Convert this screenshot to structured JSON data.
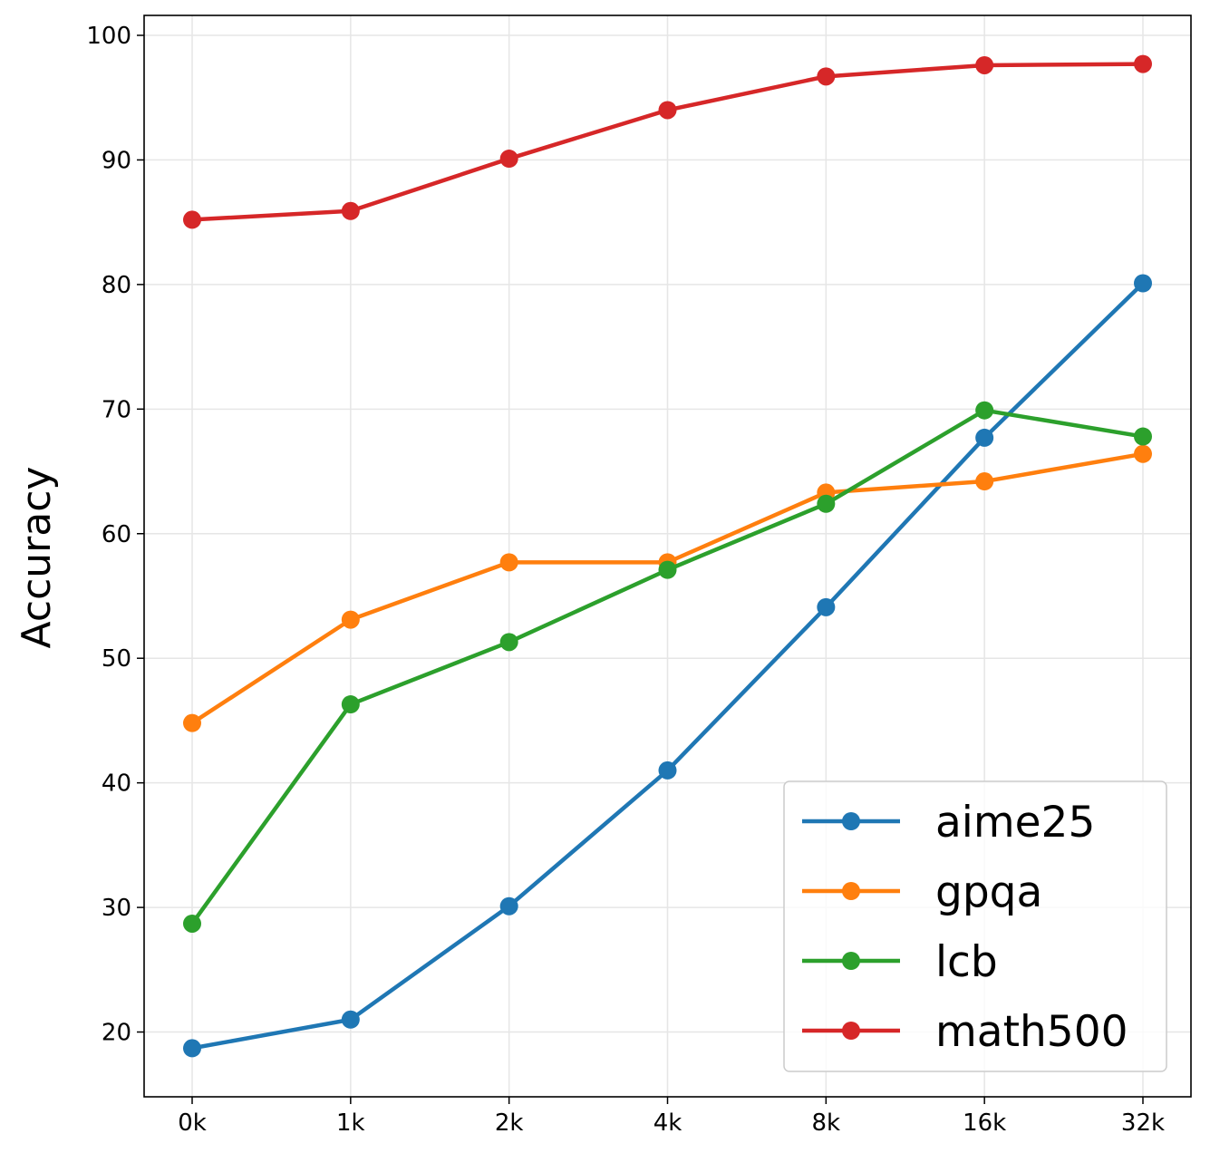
{
  "chart_data": {
    "type": "line",
    "title": "",
    "xlabel": "",
    "ylabel": "Accuracy",
    "categories": [
      "0k",
      "1k",
      "2k",
      "4k",
      "8k",
      "16k",
      "32k"
    ],
    "ylim": [
      14.8,
      101.6
    ],
    "yticks": [
      20,
      30,
      40,
      50,
      60,
      70,
      80,
      90,
      100
    ],
    "grid": true,
    "legend_position": "bottom-right",
    "series": [
      {
        "name": "aime25",
        "color": "#1f77b4",
        "values": [
          18.7,
          21.0,
          30.1,
          41.0,
          54.1,
          67.7,
          80.1
        ]
      },
      {
        "name": "gpqa",
        "color": "#ff7f0e",
        "values": [
          44.8,
          53.1,
          57.7,
          57.7,
          63.3,
          64.2,
          66.4
        ]
      },
      {
        "name": "lcb",
        "color": "#2ca02c",
        "values": [
          28.7,
          46.3,
          51.3,
          57.1,
          62.4,
          69.9,
          67.8
        ]
      },
      {
        "name": "math500",
        "color": "#d62728",
        "values": [
          85.2,
          85.9,
          90.1,
          94.0,
          96.7,
          97.6,
          97.7
        ]
      }
    ]
  }
}
